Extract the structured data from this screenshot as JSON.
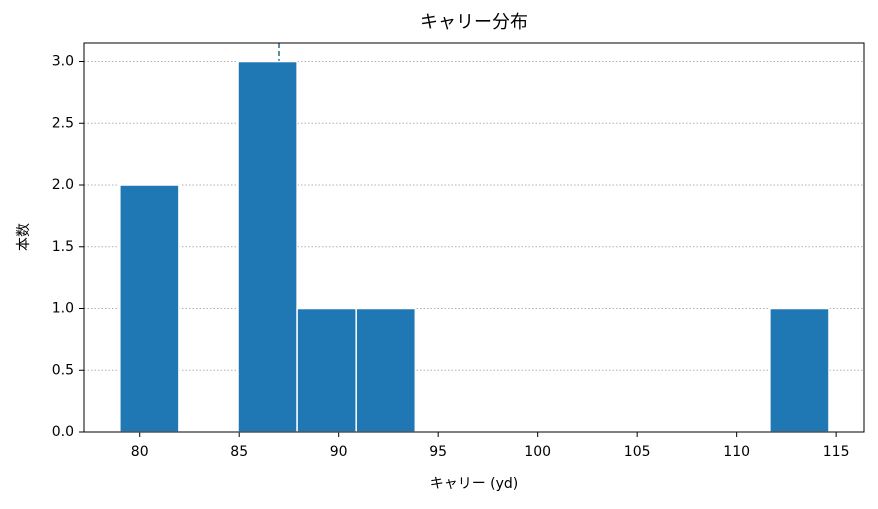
{
  "chart_data": {
    "type": "histogram",
    "title": "キャリー分布",
    "xlabel": "キャリー (yd)",
    "ylabel": "本数",
    "bins": [
      79.0,
      81.97,
      84.94,
      87.91,
      90.88,
      93.85,
      96.82,
      99.79,
      102.76,
      105.73,
      108.7,
      111.67,
      114.64
    ],
    "counts": [
      2,
      0,
      3,
      1,
      1,
      0,
      0,
      0,
      0,
      0,
      0,
      1
    ],
    "color": "#1f77b4",
    "reference_line": {
      "value": 87,
      "color": "#1f6f8b"
    },
    "xlim": [
      77.2,
      116.4
    ],
    "xticks": [
      80,
      85,
      90,
      95,
      100,
      105,
      110,
      115
    ],
    "ylim": [
      0,
      3.15
    ],
    "yticks": [
      {
        "value": 0,
        "label": "0.0"
      },
      {
        "value": 0.5,
        "label": "0.5"
      },
      {
        "value": 1,
        "label": "1.0"
      },
      {
        "value": 1.5,
        "label": "1.5"
      },
      {
        "value": 2,
        "label": "2.0"
      },
      {
        "value": 2.5,
        "label": "2.5"
      },
      {
        "value": 3,
        "label": "3.0"
      }
    ],
    "grid": true
  }
}
